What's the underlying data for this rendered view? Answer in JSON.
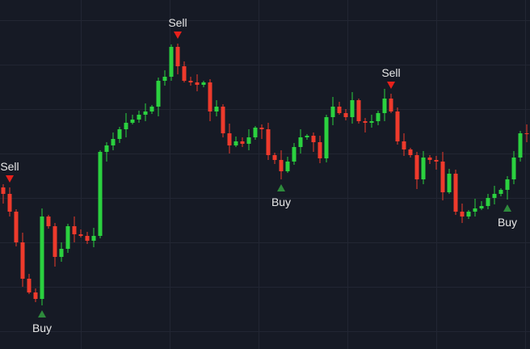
{
  "chart_data": {
    "type": "candlestick",
    "open": [
      200,
      192,
      170,
      132,
      87,
      70,
      62,
      164,
      152,
      114,
      124,
      152,
      142,
      140,
      134,
      140,
      244,
      252,
      260,
      272,
      280,
      284,
      290,
      294,
      300,
      332,
      337,
      374,
      350,
      332,
      330,
      327,
      330,
      294,
      300,
      267,
      252,
      257,
      254,
      262,
      274,
      272,
      240,
      234,
      220,
      232,
      250,
      262,
      264,
      256,
      236,
      287,
      300,
      292,
      287,
      308,
      282,
      280,
      282,
      292,
      310,
      294,
      257,
      247,
      240,
      210,
      237,
      234,
      232,
      194,
      217,
      170,
      164,
      170,
      174,
      177,
      187,
      192,
      197,
      210,
      237,
      267
    ],
    "high": [
      204,
      200,
      173,
      144,
      93,
      75,
      174,
      166,
      156,
      132,
      155,
      164,
      148,
      145,
      150,
      246,
      256,
      268,
      275,
      292,
      290,
      295,
      304,
      302,
      336,
      345,
      377,
      378,
      356,
      337,
      340,
      332,
      334,
      308,
      303,
      279,
      263,
      262,
      272,
      276,
      278,
      280,
      243,
      246,
      238,
      255,
      272,
      266,
      268,
      264,
      290,
      312,
      306,
      297,
      318,
      310,
      286,
      290,
      295,
      322,
      316,
      299,
      267,
      249,
      244,
      245,
      240,
      239,
      244,
      223,
      222,
      180,
      172,
      186,
      183,
      192,
      202,
      199,
      214,
      245,
      270,
      278
    ],
    "low": [
      180,
      164,
      127,
      77,
      68,
      58,
      54,
      149,
      102,
      108,
      119,
      132,
      138,
      130,
      126,
      137,
      232,
      246,
      255,
      262,
      278,
      280,
      282,
      291,
      288,
      326,
      332,
      340,
      330,
      326,
      319,
      324,
      282,
      288,
      262,
      242,
      250,
      250,
      246,
      259,
      260,
      234,
      229,
      210,
      218,
      228,
      242,
      259,
      244,
      230,
      231,
      277,
      290,
      283,
      279,
      279,
      268,
      274,
      277,
      282,
      292,
      253,
      239,
      237,
      198,
      204,
      229,
      222,
      184,
      192,
      166,
      156,
      161,
      164,
      172,
      173,
      179,
      189,
      185,
      204,
      232,
      256
    ],
    "close": [
      192,
      170,
      132,
      87,
      70,
      62,
      164,
      152,
      114,
      124,
      152,
      142,
      140,
      134,
      140,
      244,
      252,
      260,
      272,
      280,
      284,
      290,
      294,
      300,
      332,
      337,
      374,
      350,
      332,
      330,
      327,
      330,
      294,
      300,
      267,
      252,
      257,
      254,
      262,
      274,
      272,
      240,
      234,
      220,
      232,
      250,
      262,
      264,
      256,
      236,
      287,
      300,
      292,
      287,
      308,
      282,
      280,
      282,
      292,
      310,
      294,
      257,
      247,
      240,
      210,
      237,
      234,
      232,
      194,
      217,
      170,
      164,
      170,
      174,
      177,
      187,
      192,
      197,
      210,
      237,
      267,
      266
    ],
    "signals": [
      null,
      "Sell",
      null,
      null,
      null,
      null,
      "Buy",
      null,
      null,
      null,
      null,
      null,
      null,
      null,
      null,
      null,
      null,
      null,
      null,
      null,
      null,
      null,
      null,
      null,
      null,
      null,
      null,
      "Sell",
      null,
      null,
      null,
      null,
      null,
      null,
      null,
      null,
      null,
      null,
      null,
      null,
      null,
      null,
      null,
      "Buy",
      null,
      null,
      null,
      null,
      null,
      null,
      null,
      null,
      null,
      null,
      null,
      null,
      null,
      null,
      null,
      null,
      "Sell",
      null,
      null,
      null,
      null,
      null,
      null,
      null,
      null,
      null,
      null,
      null,
      null,
      null,
      null,
      null,
      null,
      null,
      "Buy",
      null,
      null,
      null
    ],
    "ylim": [
      0,
      432
    ],
    "up_color": "#2bd13f",
    "down_color": "#ee3a2c",
    "buy_color": "#2e8b3c",
    "sell_color": "#e8201b"
  }
}
